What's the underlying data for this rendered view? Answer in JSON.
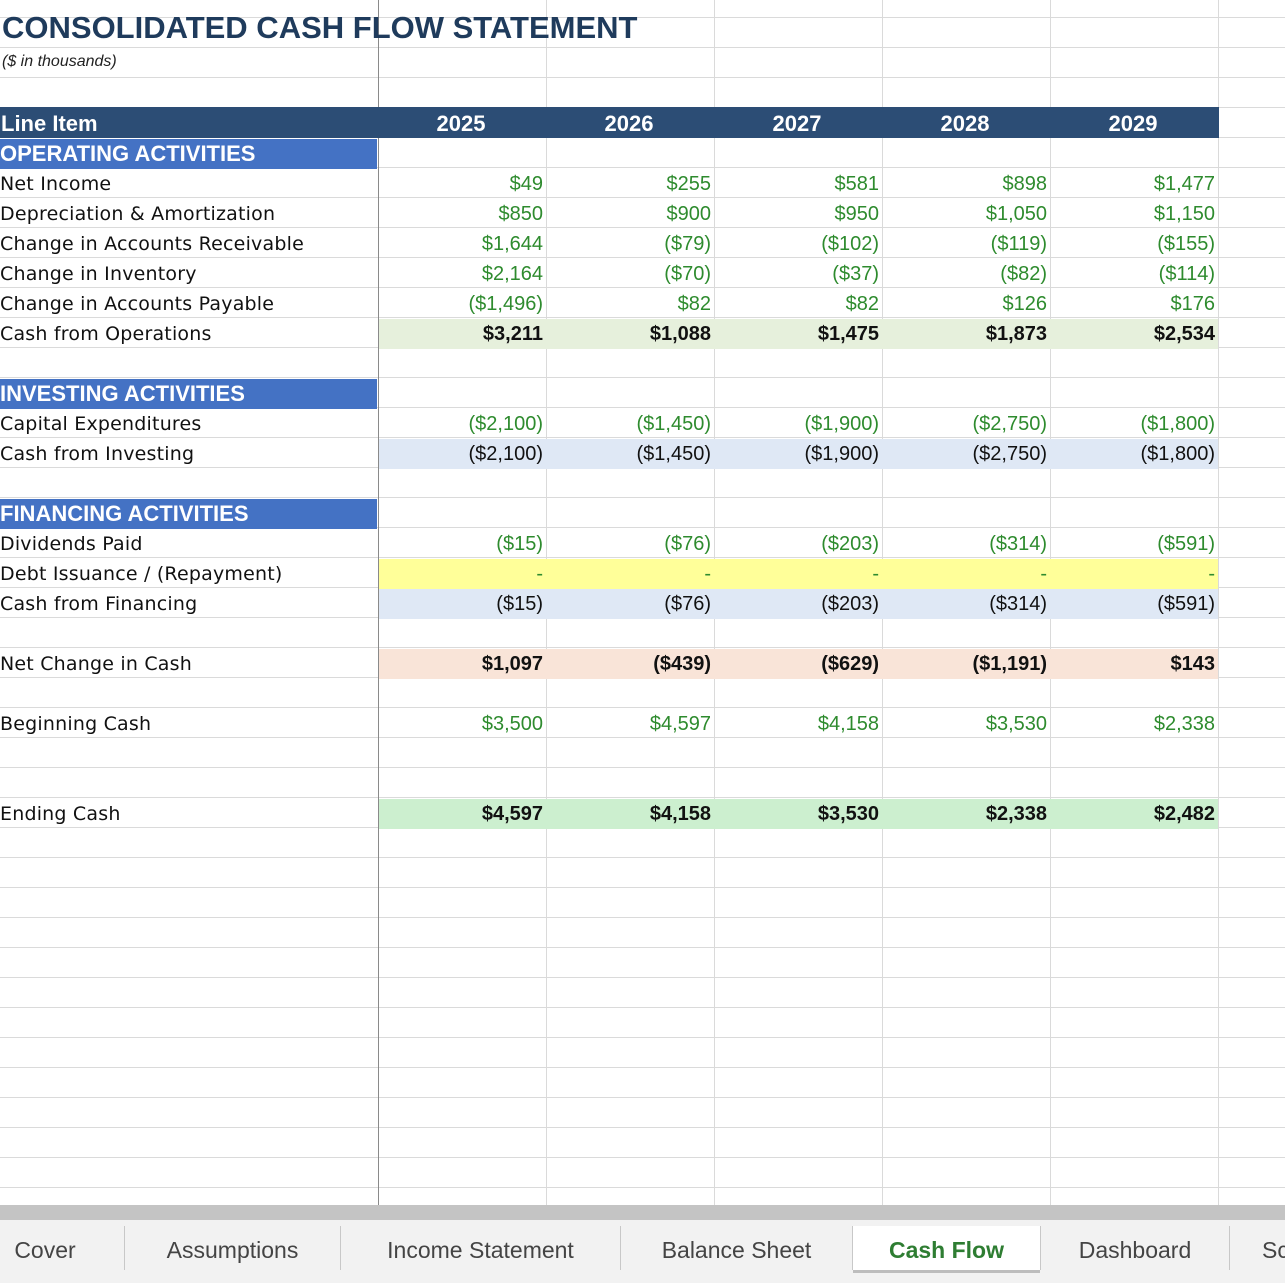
{
  "sheet": {
    "title": "CONSOLIDATED CASH FLOW STATEMENT",
    "subtitle": "($ in thousands)",
    "header": {
      "label": "Line Item",
      "years": [
        "2025",
        "2026",
        "2027",
        "2028",
        "2029"
      ]
    },
    "operating": {
      "heading": "OPERATING ACTIVITIES",
      "rows": [
        {
          "label": "Net Income",
          "values": [
            "$49",
            "$255",
            "$581",
            "$898",
            "$1,477"
          ]
        },
        {
          "label": "Depreciation & Amortization",
          "values": [
            "$850",
            "$900",
            "$950",
            "$1,050",
            "$1,150"
          ]
        },
        {
          "label": "Change in Accounts Receivable",
          "values": [
            "$1,644",
            "($79)",
            "($102)",
            "($119)",
            "($155)"
          ]
        },
        {
          "label": "Change in Inventory",
          "values": [
            "$2,164",
            "($70)",
            "($37)",
            "($82)",
            "($114)"
          ]
        },
        {
          "label": "Change in Accounts Payable",
          "values": [
            "($1,496)",
            "$82",
            "$82",
            "$126",
            "$176"
          ]
        }
      ],
      "total": {
        "label": "Cash from Operations",
        "values": [
          "$3,211",
          "$1,088",
          "$1,475",
          "$1,873",
          "$2,534"
        ]
      }
    },
    "investing": {
      "heading": "INVESTING ACTIVITIES",
      "rows": [
        {
          "label": "Capital Expenditures",
          "values": [
            "($2,100)",
            "($1,450)",
            "($1,900)",
            "($2,750)",
            "($1,800)"
          ]
        }
      ],
      "total": {
        "label": "Cash from Investing",
        "values": [
          "($2,100)",
          "($1,450)",
          "($1,900)",
          "($2,750)",
          "($1,800)"
        ]
      }
    },
    "financing": {
      "heading": "FINANCING ACTIVITIES",
      "rows": [
        {
          "label": "Dividends Paid",
          "values": [
            "($15)",
            "($76)",
            "($203)",
            "($314)",
            "($591)"
          ]
        },
        {
          "label": "Debt Issuance / (Repayment)",
          "values": [
            "-",
            "-",
            "-",
            "-",
            "-"
          ]
        }
      ],
      "total": {
        "label": "Cash from Financing",
        "values": [
          "($15)",
          "($76)",
          "($203)",
          "($314)",
          "($591)"
        ]
      }
    },
    "net_change": {
      "label": "Net Change in Cash",
      "values": [
        "$1,097",
        "($439)",
        "($629)",
        "($1,191)",
        "$143"
      ]
    },
    "beginning_cash": {
      "label": "Beginning Cash",
      "values": [
        "$3,500",
        "$4,597",
        "$4,158",
        "$3,530",
        "$2,338"
      ]
    },
    "ending_cash": {
      "label": "Ending Cash",
      "values": [
        "$4,597",
        "$4,158",
        "$3,530",
        "$2,338",
        "$2,482"
      ]
    }
  },
  "tabs": [
    "Cover",
    "Assumptions",
    "Income Statement",
    "Balance Sheet",
    "Cash Flow",
    "Dashboard",
    "Sc"
  ],
  "active_tab": "Cash Flow",
  "colors": {
    "header_fill": "#2c4d75",
    "section_fill": "#4472c4",
    "input_green": "#2e8b2e",
    "operations_total_fill": "#e6f0dc",
    "subtotal_blue_fill": "#dfe8f5",
    "input_yellow_fill": "#ffff99",
    "net_change_fill": "#f9e4d8",
    "ending_cash_fill": "#ccefcf",
    "active_tab_text": "#2e7d32"
  }
}
